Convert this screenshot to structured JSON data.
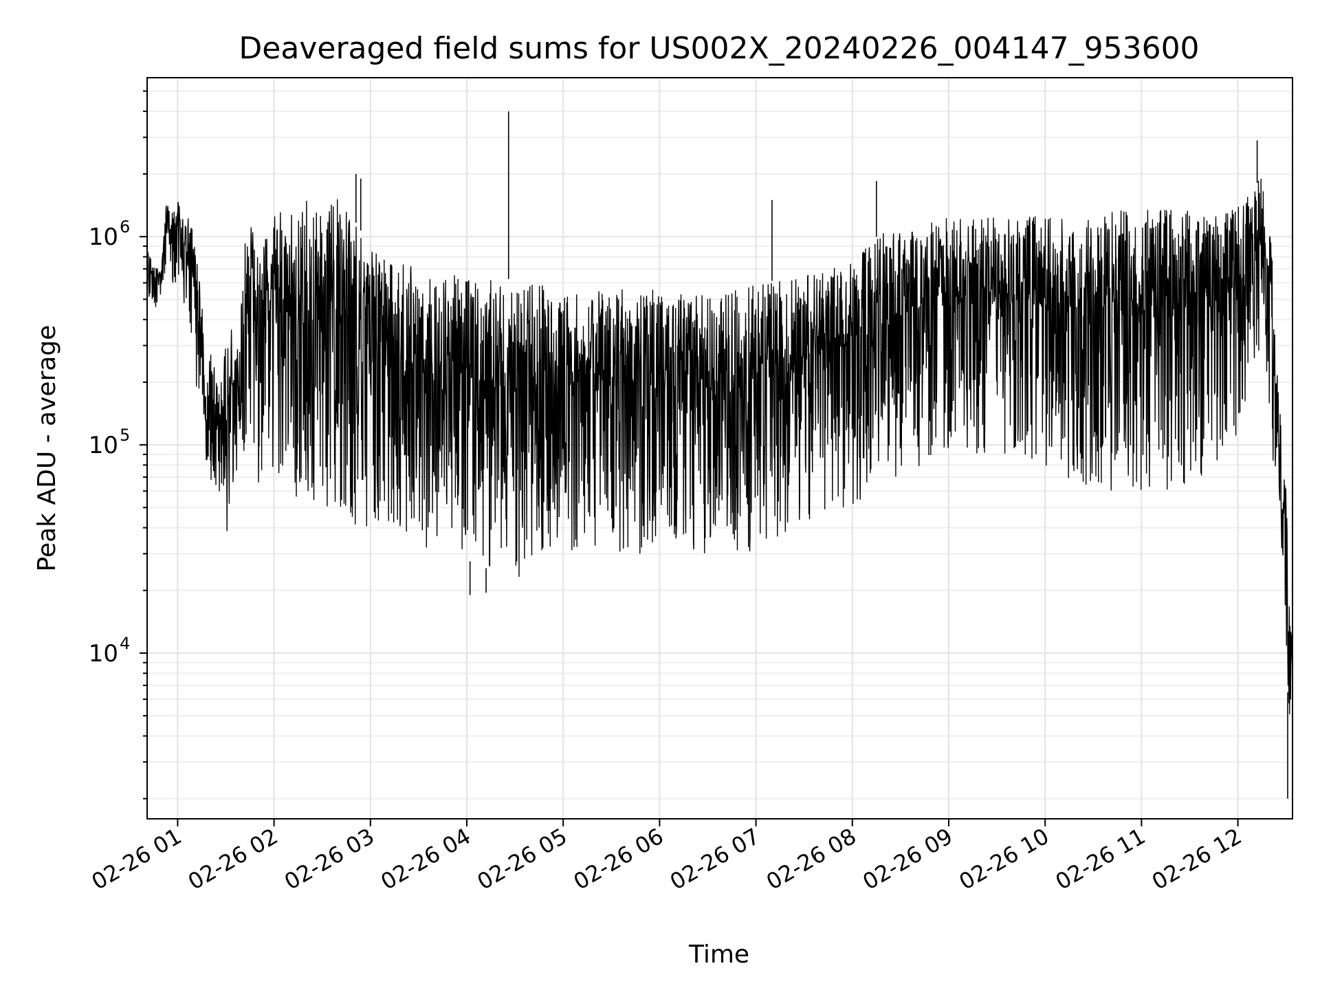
{
  "chart_data": {
    "type": "line",
    "title": "Deaveraged field sums for US002X_20240226_004147_953600",
    "xlabel": "Time",
    "ylabel": "Peak ADU - average",
    "y_scale": "log",
    "ylim": [
      1600,
      5800000
    ],
    "xlim": [
      "2024-02-26 00:41",
      "2024-02-26 12:34"
    ],
    "grid": "on",
    "legend": "none",
    "line_color": "#000000",
    "grid_color": "#e3e3e3",
    "x_ticks": [
      {
        "value": "2024-02-26 01:00",
        "label": "02-26 01"
      },
      {
        "value": "2024-02-26 02:00",
        "label": "02-26 02"
      },
      {
        "value": "2024-02-26 03:00",
        "label": "02-26 03"
      },
      {
        "value": "2024-02-26 04:00",
        "label": "02-26 04"
      },
      {
        "value": "2024-02-26 05:00",
        "label": "02-26 05"
      },
      {
        "value": "2024-02-26 06:00",
        "label": "02-26 06"
      },
      {
        "value": "2024-02-26 07:00",
        "label": "02-26 07"
      },
      {
        "value": "2024-02-26 08:00",
        "label": "02-26 08"
      },
      {
        "value": "2024-02-26 09:00",
        "label": "02-26 09"
      },
      {
        "value": "2024-02-26 10:00",
        "label": "02-26 10"
      },
      {
        "value": "2024-02-26 11:00",
        "label": "02-26 11"
      },
      {
        "value": "2024-02-26 12:00",
        "label": "02-26 12"
      }
    ],
    "y_ticks": [
      {
        "value": 10000,
        "base": "10",
        "exp": "4"
      },
      {
        "value": 100000,
        "base": "10",
        "exp": "5"
      },
      {
        "value": 1000000,
        "base": "10",
        "exp": "6"
      }
    ],
    "series": [
      {
        "x": [
          "2024-02-26 00:41",
          "2024-02-26 00:46",
          "2024-02-26 00:50",
          "2024-02-26 00:53",
          "2024-02-26 00:56",
          "2024-02-26 00:59",
          "2024-02-26 01:03",
          "2024-02-26 01:07",
          "2024-02-26 01:11",
          "2024-02-26 01:15",
          "2024-02-26 01:18",
          "2024-02-26 01:21",
          "2024-02-26 01:24",
          "2024-02-26 01:27",
          "2024-02-26 01:30",
          "2024-02-26 01:34",
          "2024-02-26 01:38",
          "2024-02-26 01:42",
          "2024-02-26 01:46",
          "2024-02-26 01:50",
          "2024-02-26 01:55",
          "2024-02-26 02:00",
          "2024-02-26 02:10",
          "2024-02-26 02:20",
          "2024-02-26 02:30",
          "2024-02-26 02:40",
          "2024-02-26 02:50",
          "2024-02-26 03:00",
          "2024-02-26 03:10",
          "2024-02-26 03:20",
          "2024-02-26 03:30",
          "2024-02-26 03:45",
          "2024-02-26 04:00",
          "2024-02-26 04:15",
          "2024-02-26 04:30",
          "2024-02-26 04:45",
          "2024-02-26 05:00",
          "2024-02-26 05:20",
          "2024-02-26 05:40",
          "2024-02-26 06:00",
          "2024-02-26 06:15",
          "2024-02-26 06:30",
          "2024-02-26 06:45",
          "2024-02-26 07:00",
          "2024-02-26 07:15",
          "2024-02-26 07:30",
          "2024-02-26 07:45",
          "2024-02-26 08:00",
          "2024-02-26 08:15",
          "2024-02-26 08:30",
          "2024-02-26 08:45",
          "2024-02-26 09:00",
          "2024-02-26 09:20",
          "2024-02-26 09:40",
          "2024-02-26 10:00",
          "2024-02-26 10:20",
          "2024-02-26 10:40",
          "2024-02-26 11:00",
          "2024-02-26 11:20",
          "2024-02-26 11:40",
          "2024-02-26 12:00",
          "2024-02-26 12:10",
          "2024-02-26 12:15",
          "2024-02-26 12:18",
          "2024-02-26 12:21",
          "2024-02-26 12:24",
          "2024-02-26 12:27",
          "2024-02-26 12:30",
          "2024-02-26 12:32",
          "2024-02-26 12:34"
        ],
        "upper": [
          900000,
          700000,
          750000,
          1500000,
          1300000,
          1500000,
          1400000,
          1300000,
          900000,
          500000,
          200000,
          400000,
          200000,
          260000,
          300000,
          400000,
          300000,
          1000000,
          1200000,
          900000,
          1000000,
          1300000,
          1400000,
          1500000,
          1300000,
          1700000,
          1200000,
          900000,
          800000,
          750000,
          700000,
          680000,
          650000,
          640000,
          620000,
          600000,
          580000,
          570000,
          560000,
          560000,
          540000,
          540000,
          560000,
          600000,
          620000,
          650000,
          700000,
          800000,
          1000000,
          1150000,
          1200000,
          1250000,
          1300000,
          1300000,
          1300000,
          1300000,
          1350000,
          1350000,
          1350000,
          1350000,
          1400000,
          1700000,
          2000000,
          1500000,
          900000,
          250000,
          120000,
          60000,
          20000,
          10000
        ],
        "lower": [
          500000,
          450000,
          500000,
          700000,
          600000,
          600000,
          500000,
          350000,
          200000,
          120000,
          80000,
          60000,
          40000,
          32000,
          35000,
          60000,
          80000,
          90000,
          80000,
          60000,
          60000,
          55000,
          50000,
          50000,
          50000,
          45000,
          40000,
          40000,
          40000,
          35000,
          32000,
          30000,
          28000,
          25000,
          22000,
          25000,
          30000,
          32000,
          30000,
          30000,
          30000,
          30000,
          28000,
          30000,
          35000,
          40000,
          45000,
          50000,
          60000,
          70000,
          80000,
          90000,
          90000,
          90000,
          80000,
          65000,
          60000,
          60000,
          60000,
          70000,
          100000,
          200000,
          300000,
          200000,
          80000,
          40000,
          22000,
          12000,
          3500,
          2500
        ],
        "spikes": [
          {
            "x": "2024-02-26 04:26",
            "y": 4000000
          },
          {
            "x": "2024-02-26 02:51",
            "y": 2000000
          },
          {
            "x": "2024-02-26 02:54",
            "y": 1900000
          },
          {
            "x": "2024-02-26 08:15",
            "y": 1850000
          },
          {
            "x": "2024-02-26 07:10",
            "y": 1500000
          },
          {
            "x": "2024-02-26 12:12",
            "y": 2900000
          },
          {
            "x": "2024-02-26 04:02",
            "y": 19000
          },
          {
            "x": "2024-02-26 04:12",
            "y": 19500
          },
          {
            "x": "2024-02-26 12:31",
            "y": 2000
          }
        ]
      }
    ]
  }
}
